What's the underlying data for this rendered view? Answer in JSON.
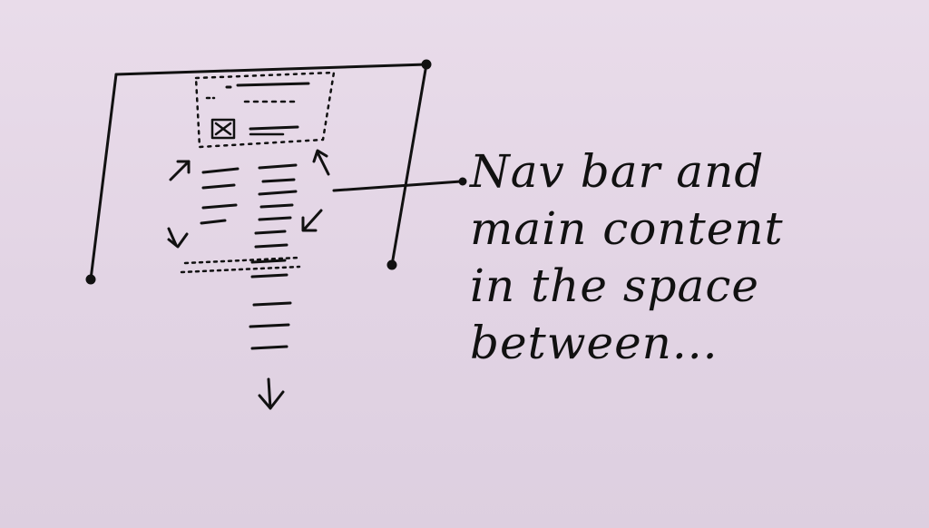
{
  "annotation": {
    "lines": [
      "Nav bar and",
      "main content",
      "in the space",
      "between..."
    ]
  },
  "colors": {
    "paper": "#e6d8e7",
    "ink": "#111111"
  },
  "icons": {
    "scroll_arrows": [
      "arrow-up-left-icon",
      "arrow-up-right-icon",
      "arrow-down-left-icon",
      "arrow-down-right-icon",
      "arrow-down-icon"
    ],
    "nav_icon": "crossed-box-icon"
  }
}
